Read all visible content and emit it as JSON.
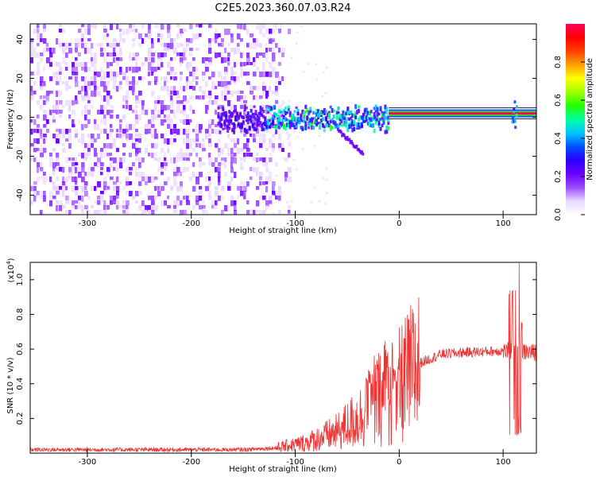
{
  "title": "C2E5.2023.360.07.03.R24",
  "chart_data": [
    {
      "type": "heatmap",
      "xlabel": "Height of straight line (km)",
      "ylabel": "Frequency (Hz)",
      "xlim": [
        -355,
        132
      ],
      "ylim": [
        -50,
        48
      ],
      "xticks": [
        -300,
        -200,
        -100,
        0,
        100
      ],
      "yticks": [
        -40,
        -20,
        0,
        20,
        40
      ],
      "colorbar": {
        "label": "Normalized spectral amplitude",
        "range": [
          0,
          1
        ],
        "ticks": [
          0.0,
          0.2,
          0.4,
          0.6,
          0.8
        ],
        "colormap": "rainbow",
        "stops": [
          "#ffffff",
          "#e8d8ff",
          "#9a4cff",
          "#6a00ff",
          "#2a00ff",
          "#0050ff",
          "#00c8ff",
          "#00ffa0",
          "#20ff00",
          "#a0ff00",
          "#ffff00",
          "#ffa000",
          "#ff4000",
          "#ff0000",
          "#ff0060"
        ]
      },
      "features": {
        "noise_region_x": [
          -355,
          -120
        ],
        "tone_start_x": -10,
        "tone_frequency": 2,
        "burst_x": 110
      },
      "grid": false
    },
    {
      "type": "line",
      "xlabel": "Height of straight line (km)",
      "ylabel": "SNR (10 * v/v)",
      "y_scale_label": "(x10",
      "y_scale_exponent": "4",
      "y_scale_close": ")",
      "xlim": [
        -355,
        132
      ],
      "ylim": [
        0,
        1.1
      ],
      "xticks": [
        -300,
        -200,
        -100,
        0,
        100
      ],
      "yticks": [
        0.2,
        0.4,
        0.6,
        0.8,
        1.0
      ],
      "series": [
        {
          "color": "#ee3333",
          "envelope": [
            {
              "x": -355,
              "y": 0.02
            },
            {
              "x": -150,
              "y": 0.02
            },
            {
              "x": -120,
              "y": 0.03
            },
            {
              "x": -90,
              "y": 0.06
            },
            {
              "x": -60,
              "y": 0.12
            },
            {
              "x": -40,
              "y": 0.2
            },
            {
              "x": -20,
              "y": 0.3
            },
            {
              "x": 0,
              "y": 0.38
            },
            {
              "x": 20,
              "y": 0.52
            },
            {
              "x": 40,
              "y": 0.57
            },
            {
              "x": 60,
              "y": 0.58
            },
            {
              "x": 100,
              "y": 0.59
            },
            {
              "x": 132,
              "y": 0.58
            }
          ],
          "spikes": [
            {
              "x": -30,
              "y": 0.48
            },
            {
              "x": -22,
              "y": 0.58
            },
            {
              "x": -12,
              "y": 0.67
            },
            {
              "x": -3,
              "y": 0.5
            },
            {
              "x": 108,
              "y": 0.95
            },
            {
              "x": 113,
              "y": 1.1
            },
            {
              "x": 116,
              "y": 0.85
            }
          ]
        }
      ],
      "grid": false
    }
  ]
}
